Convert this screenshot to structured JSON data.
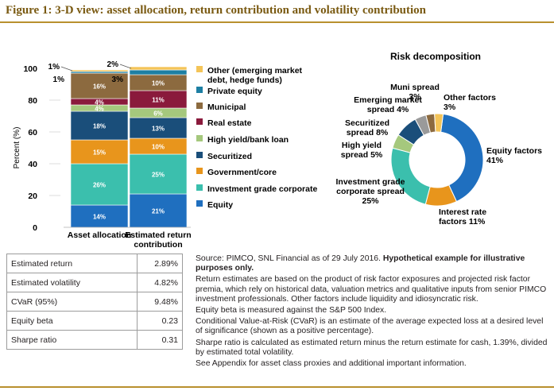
{
  "figure_title": "Figure 1: 3-D view: asset allocation, return contribution and volatility contribution",
  "chart_data": [
    {
      "type": "bar",
      "stacked": true,
      "ylabel": "Percent (%)",
      "ylim": [
        0,
        100
      ],
      "yticks": [
        "0",
        "20",
        "40",
        "60",
        "80",
        "100"
      ],
      "categories": [
        "Asset allocation",
        "Estimated return contribution"
      ],
      "category_labels": [
        [
          "Asset allocation"
        ],
        [
          "Estimated return",
          "contribution"
        ]
      ],
      "series": [
        {
          "name": "Equity",
          "color": "#1f6fbf",
          "values": [
            14,
            21
          ],
          "labels": [
            "14%",
            "21%"
          ]
        },
        {
          "name": "Investment grade corporate",
          "color": "#3bbfad",
          "values": [
            26,
            25
          ],
          "labels": [
            "26%",
            "25%"
          ]
        },
        {
          "name": "Government/core",
          "color": "#e8951c",
          "values": [
            15,
            10
          ],
          "labels": [
            "15%",
            "10%"
          ]
        },
        {
          "name": "Securitized",
          "color": "#1a4e7a",
          "values": [
            18,
            13
          ],
          "labels": [
            "18%",
            "13%"
          ]
        },
        {
          "name": "High yield/bank loan",
          "color": "#a5c87d",
          "values": [
            4,
            6
          ],
          "labels": [
            "4%",
            "6%"
          ]
        },
        {
          "name": "Real estate",
          "color": "#8a1a3c",
          "values": [
            4,
            11
          ],
          "labels": [
            "4%",
            "11%"
          ]
        },
        {
          "name": "Municipal",
          "color": "#8c6a3f",
          "values": [
            16,
            10
          ],
          "labels": [
            "16%",
            "10%"
          ]
        },
        {
          "name": "Private equity",
          "color": "#1d7fa3",
          "values": [
            1,
            3
          ],
          "labels": [
            "1%",
            "3%"
          ]
        },
        {
          "name": "Other (emerging market debt, hedge funds)",
          "color": "#f4c458",
          "values": [
            1,
            2
          ],
          "labels": [
            "1%",
            "2%"
          ]
        }
      ],
      "legend": [
        {
          "lines": [
            "Other (emerging market",
            "debt, hedge funds)"
          ],
          "color": "#f4c458"
        },
        {
          "lines": [
            "Private equity"
          ],
          "color": "#1d7fa3"
        },
        {
          "lines": [
            "Municipal"
          ],
          "color": "#8c6a3f"
        },
        {
          "lines": [
            "Real estate"
          ],
          "color": "#8a1a3c"
        },
        {
          "lines": [
            "High yield/bank loan"
          ],
          "color": "#a5c87d"
        },
        {
          "lines": [
            "Securitized"
          ],
          "color": "#1a4e7a"
        },
        {
          "lines": [
            "Government/core"
          ],
          "color": "#e8951c"
        },
        {
          "lines": [
            "Investment grade corporate"
          ],
          "color": "#3bbfad"
        },
        {
          "lines": [
            "Equity"
          ],
          "color": "#1f6fbf"
        }
      ]
    },
    {
      "type": "pie",
      "donut": true,
      "title": "Risk decomposition",
      "slices": [
        {
          "name": "Equity factors",
          "value": 41,
          "color": "#1f6fbf",
          "lines": [
            "Equity factors",
            "41%"
          ]
        },
        {
          "name": "Interest rate factors",
          "value": 11,
          "color": "#e8951c",
          "lines": [
            "Interest rate",
            "factors 11%"
          ]
        },
        {
          "name": "Investment grade corporate spread",
          "value": 25,
          "color": "#3bbfad",
          "lines": [
            "Investment grade",
            "corporate spread",
            "25%"
          ]
        },
        {
          "name": "High yield spread",
          "value": 5,
          "color": "#a5c87d",
          "lines": [
            "High yield",
            "spread 5%"
          ]
        },
        {
          "name": "Securitized",
          "value": 8,
          "color": "#1a4e7a",
          "lines": [
            "Securitized",
            "spread 8%"
          ]
        },
        {
          "name": "Emerging market spread",
          "value": 4,
          "color": "#9a9a9a",
          "lines": [
            "Emerging market",
            "spread 4%"
          ]
        },
        {
          "name": "Muni spread",
          "value": 3,
          "color": "#8c6a3f",
          "lines": [
            "Muni spread",
            "3%"
          ]
        },
        {
          "name": "Other factors",
          "value": 3,
          "color": "#f4c458",
          "lines": [
            "Other factors",
            "3%"
          ]
        }
      ]
    }
  ],
  "stats_table": [
    {
      "label": "Estimated return",
      "value": "2.89%"
    },
    {
      "label": "Estimated volatility",
      "value": "4.82%"
    },
    {
      "label": "CVaR (95%)",
      "value": "9.48%"
    },
    {
      "label": "Equity beta",
      "value": "0.23"
    },
    {
      "label": "Sharpe ratio",
      "value": "0.31"
    }
  ],
  "notes": {
    "source": "Source: PIMCO, SNL Financial as of 29 July 2016. ",
    "source_bold": "Hypothetical example for illustrative purposes only.",
    "paragraphs": [
      "Return estimates are based on the product of risk factor exposures and projected risk factor premia, which rely on historical data, valuation metrics and qualitative inputs from senior PIMCO investment professionals. Other factors include liquidity and idiosyncratic risk.",
      "Equity beta is measured against the S&P 500 Index.",
      "Conditional Value-at-Risk (CVaR) is an estimate of the average expected loss at a desired level of significance (shown as a positive percentage).",
      "Sharpe ratio is calculated as estimated return minus the return estimate for cash, 1.39%, divided by estimated total volatility.",
      "See Appendix for asset class proxies and additional important information."
    ]
  }
}
